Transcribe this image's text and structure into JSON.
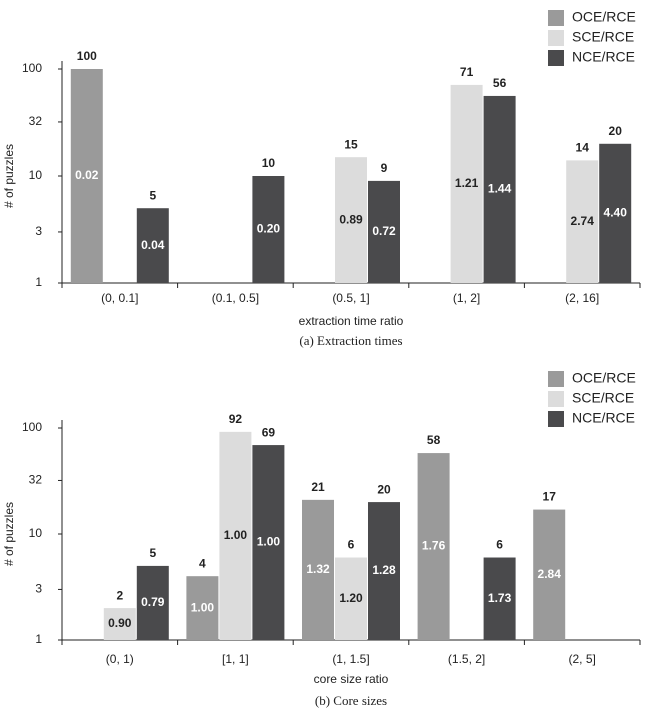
{
  "chart_data": [
    {
      "type": "bar",
      "log_y": true,
      "caption": "(a) Extraction times",
      "xlabel": "extraction time ratio",
      "ylabel": "# of puzzles",
      "categories": [
        "(0, 0.1]",
        "(0.1, 0.5]",
        "(0.5, 1]",
        "(1, 2]",
        "(2, 16]"
      ],
      "ylim": [
        1,
        100
      ],
      "yticks": [
        1,
        3,
        10,
        32,
        100
      ],
      "series": [
        {
          "name": "OCE/RCE",
          "color": "#9a9a9a",
          "values": [
            100,
            null,
            null,
            null,
            null
          ],
          "ratio_labels": [
            "0.02",
            null,
            null,
            null,
            null
          ]
        },
        {
          "name": "SCE/RCE",
          "color": "#dcdcdc",
          "values": [
            null,
            null,
            15,
            71,
            14
          ],
          "ratio_labels": [
            null,
            null,
            "0.89",
            "1.21",
            "2.74"
          ]
        },
        {
          "name": "NCE/RCE",
          "color": "#4a4a4c",
          "values": [
            5,
            10,
            9,
            56,
            20
          ],
          "ratio_labels": [
            "0.04",
            "0.20",
            "0.72",
            "1.44",
            "4.40"
          ]
        }
      ]
    },
    {
      "type": "bar",
      "log_y": true,
      "caption": "(b) Core sizes",
      "xlabel": "core size ratio",
      "ylabel": "# of puzzles",
      "categories": [
        "(0, 1)",
        "[1, 1]",
        "(1, 1.5]",
        "(1.5, 2]",
        "(2, 5]"
      ],
      "ylim": [
        1,
        100
      ],
      "yticks": [
        1,
        3,
        10,
        32,
        100
      ],
      "series": [
        {
          "name": "OCE/RCE",
          "color": "#9a9a9a",
          "values": [
            null,
            4,
            21,
            58,
            17
          ],
          "ratio_labels": [
            null,
            "1.00",
            "1.32",
            "1.76",
            "2.84"
          ]
        },
        {
          "name": "SCE/RCE",
          "color": "#dcdcdc",
          "values": [
            2,
            92,
            6,
            null,
            null
          ],
          "ratio_labels": [
            "0.90",
            "1.00",
            "1.20",
            null,
            null
          ]
        },
        {
          "name": "NCE/RCE",
          "color": "#4a4a4c",
          "values": [
            5,
            69,
            20,
            6,
            null
          ],
          "ratio_labels": [
            "0.79",
            "1.00",
            "1.28",
            "1.73",
            null
          ]
        }
      ]
    }
  ]
}
